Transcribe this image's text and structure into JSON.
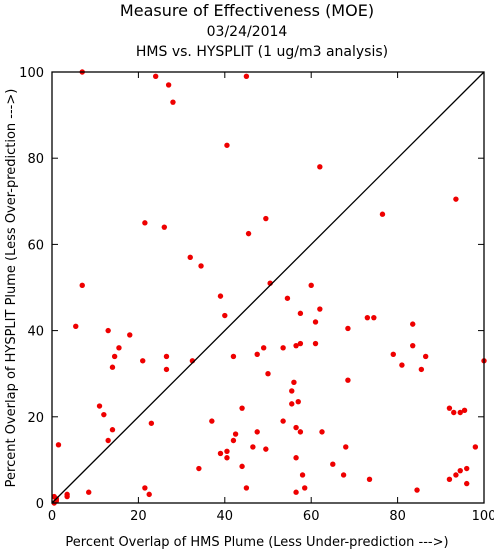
{
  "chart_data": {
    "type": "scatter",
    "title": "Measure of Effectiveness (MOE)",
    "subtitle_date": "03/24/2014",
    "subtitle_analysis": "HMS vs. HYSPLIT  (1 ug/m3 analysis)",
    "xlabel": "Percent Overlap of HMS Plume (Less Under-prediction --->)",
    "ylabel": "Percent Overlap of HYSPLIT Plume (Less Over-prediction --->)",
    "xlim": [
      0,
      100
    ],
    "ylim": [
      0,
      100
    ],
    "xticks": [
      0,
      20,
      40,
      60,
      80,
      100
    ],
    "yticks": [
      0,
      20,
      40,
      60,
      80,
      100
    ],
    "reference_line": "diagonal y = x",
    "grid": false,
    "marker_color": "#ee0000",
    "line_color": "#000000",
    "points": [
      [
        7,
        100
      ],
      [
        24,
        99
      ],
      [
        45,
        99
      ],
      [
        27,
        97
      ],
      [
        28,
        93
      ],
      [
        40.5,
        83
      ],
      [
        62,
        78
      ],
      [
        76.5,
        67
      ],
      [
        93.5,
        70.5
      ],
      [
        21.5,
        65
      ],
      [
        26,
        64
      ],
      [
        49.5,
        66
      ],
      [
        45.5,
        62.5
      ],
      [
        32,
        57
      ],
      [
        34.5,
        55
      ],
      [
        7,
        50.5
      ],
      [
        50.5,
        51
      ],
      [
        60,
        50.5
      ],
      [
        39,
        48
      ],
      [
        54.5,
        47.5
      ],
      [
        40,
        43.5
      ],
      [
        57.5,
        44
      ],
      [
        62,
        45
      ],
      [
        61,
        42
      ],
      [
        73,
        43
      ],
      [
        74.5,
        43
      ],
      [
        83.5,
        41.5
      ],
      [
        5.5,
        41
      ],
      [
        13,
        40
      ],
      [
        18,
        39
      ],
      [
        68.5,
        40.5
      ],
      [
        15.5,
        36
      ],
      [
        14.5,
        34
      ],
      [
        21,
        33
      ],
      [
        26.5,
        34
      ],
      [
        32.5,
        33
      ],
      [
        42,
        34
      ],
      [
        47.5,
        34.5
      ],
      [
        49,
        36
      ],
      [
        53.5,
        36
      ],
      [
        56.5,
        36.5
      ],
      [
        57.5,
        37
      ],
      [
        61,
        37
      ],
      [
        83.5,
        36.5
      ],
      [
        79,
        34.5
      ],
      [
        81,
        32
      ],
      [
        86.5,
        34
      ],
      [
        85.5,
        31
      ],
      [
        14,
        31.5
      ],
      [
        26.5,
        31
      ],
      [
        50,
        30
      ],
      [
        56,
        28
      ],
      [
        68.5,
        28.5
      ],
      [
        100,
        33
      ],
      [
        11,
        22.5
      ],
      [
        12,
        20.5
      ],
      [
        37,
        19
      ],
      [
        44,
        22
      ],
      [
        53.5,
        19
      ],
      [
        55.5,
        26
      ],
      [
        55.5,
        23
      ],
      [
        57,
        23.5
      ],
      [
        92,
        22
      ],
      [
        93,
        21
      ],
      [
        94.5,
        21
      ],
      [
        95.5,
        21.5
      ],
      [
        14,
        17
      ],
      [
        23,
        18.5
      ],
      [
        13,
        14.5
      ],
      [
        42.5,
        16
      ],
      [
        47.5,
        16.5
      ],
      [
        42,
        14.5
      ],
      [
        39,
        11.5
      ],
      [
        40.5,
        12
      ],
      [
        40.5,
        10.5
      ],
      [
        44,
        8.5
      ],
      [
        46.5,
        13
      ],
      [
        49.5,
        12.5
      ],
      [
        56.5,
        17.5
      ],
      [
        57.5,
        16.5
      ],
      [
        62.5,
        16.5
      ],
      [
        68,
        13
      ],
      [
        98,
        13
      ],
      [
        1.5,
        13.5
      ],
      [
        34,
        8
      ],
      [
        56.5,
        10.5
      ],
      [
        58,
        6.5
      ],
      [
        65,
        9
      ],
      [
        67.5,
        6.5
      ],
      [
        73.5,
        5.5
      ],
      [
        92,
        5.5
      ],
      [
        93.5,
        6.5
      ],
      [
        94.5,
        7.5
      ],
      [
        96,
        8
      ],
      [
        96,
        4.5
      ],
      [
        21.5,
        3.5
      ],
      [
        22.5,
        2
      ],
      [
        45,
        3.5
      ],
      [
        56.5,
        2.5
      ],
      [
        58.5,
        3.5
      ],
      [
        84.5,
        3
      ],
      [
        3.5,
        2
      ],
      [
        3.5,
        1.5
      ],
      [
        8.5,
        2.5
      ],
      [
        0.5,
        1.5
      ],
      [
        1,
        1
      ],
      [
        1,
        0.5
      ],
      [
        0.5,
        0
      ]
    ]
  }
}
